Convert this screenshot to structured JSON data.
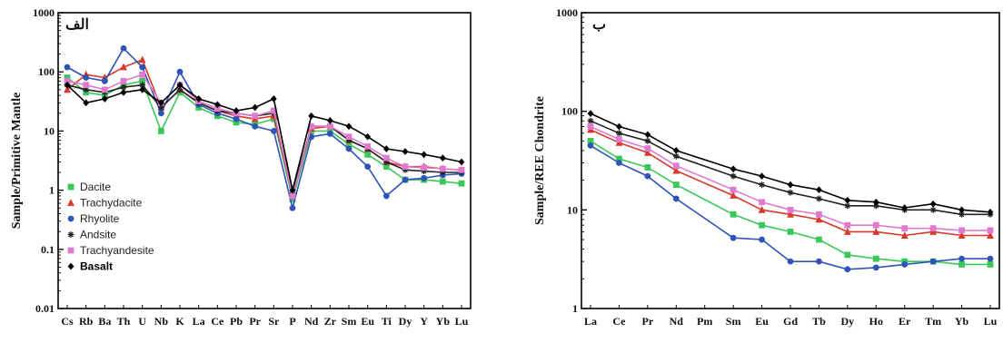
{
  "chart_data": [
    {
      "type": "line",
      "panel_label": "الف",
      "ylabel": "Sample/Primitive Mantle",
      "yscale": "log",
      "ylim": [
        0.01,
        1000
      ],
      "yticks": [
        "0.01",
        "0.1",
        "1",
        "10",
        "100",
        "1000"
      ],
      "categories": [
        "Cs",
        "Rb",
        "Ba",
        "Th",
        "U",
        "Nb",
        "K",
        "La",
        "Ce",
        "Pb",
        "Pr",
        "Sr",
        "P",
        "Nd",
        "Zr",
        "Sm",
        "Eu",
        "Ti",
        "Dy",
        "Y",
        "Yb",
        "Lu"
      ],
      "legend_placement": "bottom-left",
      "series": [
        {
          "name": "Dacite",
          "color": "#3cc75a",
          "marker": "square",
          "values": [
            80,
            45,
            40,
            60,
            70,
            10,
            45,
            25,
            18,
            14,
            13,
            16,
            0.7,
            10,
            10,
            6,
            4,
            2.5,
            1.5,
            1.5,
            1.4,
            1.3
          ]
        },
        {
          "name": "Trachydacite",
          "color": "#d9392b",
          "marker": "triangle",
          "values": [
            50,
            90,
            80,
            120,
            160,
            25,
            50,
            30,
            22,
            18,
            16,
            18,
            0.8,
            11,
            12,
            7,
            5,
            3,
            2.5,
            2.5,
            2.3,
            2.2
          ]
        },
        {
          "name": "Rhyolite",
          "color": "#2e54b8",
          "marker": "circle",
          "values": [
            120,
            80,
            70,
            250,
            120,
            20,
            100,
            28,
            20,
            16,
            12,
            10,
            0.5,
            8,
            9,
            5,
            2.5,
            0.8,
            1.5,
            1.6,
            1.8,
            1.9
          ]
        },
        {
          "name": "Andsite",
          "color": "#222222",
          "marker": "asterisk",
          "values": [
            60,
            50,
            45,
            55,
            60,
            25,
            50,
            30,
            22,
            20,
            18,
            20,
            0.9,
            12,
            12,
            7,
            5,
            3,
            2.2,
            2.1,
            2.0,
            2.0
          ]
        },
        {
          "name": "Trachyandesite",
          "color": "#e07ad0",
          "marker": "square",
          "values": [
            70,
            60,
            50,
            70,
            90,
            30,
            60,
            32,
            24,
            20,
            18,
            22,
            0.8,
            12,
            12,
            8,
            5.5,
            3.5,
            2.5,
            2.4,
            2.3,
            2.2
          ]
        },
        {
          "name": "Basalt",
          "color": "#000000",
          "marker": "diamond",
          "values": [
            60,
            30,
            35,
            45,
            50,
            30,
            60,
            35,
            28,
            22,
            25,
            35,
            1.0,
            18,
            15,
            12,
            8,
            5,
            4.5,
            4.0,
            3.5,
            3.0
          ]
        }
      ]
    },
    {
      "type": "line",
      "panel_label": "ب",
      "ylabel": "Sample/REE Chondrite",
      "yscale": "log",
      "ylim": [
        1,
        1000
      ],
      "yticks": [
        "1",
        "10",
        "100",
        "1000"
      ],
      "categories": [
        "La",
        "Ce",
        "Pr",
        "Nd",
        "Pm",
        "Sm",
        "Eu",
        "Gd",
        "Tb",
        "Dy",
        "Ho",
        "Er",
        "Tm",
        "Yb",
        "Lu"
      ],
      "series": [
        {
          "name": "Dacite",
          "color": "#3cc75a",
          "marker": "square",
          "values": [
            50,
            33,
            27,
            18,
            null,
            9,
            7,
            6,
            5,
            3.5,
            3.2,
            3.0,
            3.0,
            2.8,
            2.8
          ]
        },
        {
          "name": "Trachydacite",
          "color": "#d9392b",
          "marker": "triangle",
          "values": [
            65,
            48,
            38,
            25,
            null,
            14,
            10,
            9,
            8,
            6,
            6,
            5.5,
            6,
            5.5,
            5.5
          ]
        },
        {
          "name": "Rhyolite",
          "color": "#2e54b8",
          "marker": "circle",
          "values": [
            45,
            30,
            22,
            13,
            null,
            5.2,
            5,
            3,
            3,
            2.5,
            2.6,
            2.8,
            3,
            3.2,
            3.2
          ]
        },
        {
          "name": "Andsite",
          "color": "#222222",
          "marker": "asterisk",
          "values": [
            80,
            60,
            50,
            35,
            null,
            22,
            18,
            15,
            13,
            11,
            11,
            10,
            10,
            9,
            9
          ]
        },
        {
          "name": "Trachyandesite",
          "color": "#e07ad0",
          "marker": "square",
          "values": [
            70,
            52,
            42,
            28,
            null,
            16,
            12,
            10,
            9,
            7,
            7,
            6.5,
            6.5,
            6.2,
            6.2
          ]
        },
        {
          "name": "Basalt",
          "color": "#000000",
          "marker": "diamond",
          "values": [
            95,
            70,
            58,
            40,
            null,
            26,
            22,
            18,
            16,
            12.5,
            12,
            10.5,
            11.5,
            10,
            9.5
          ]
        }
      ]
    }
  ]
}
